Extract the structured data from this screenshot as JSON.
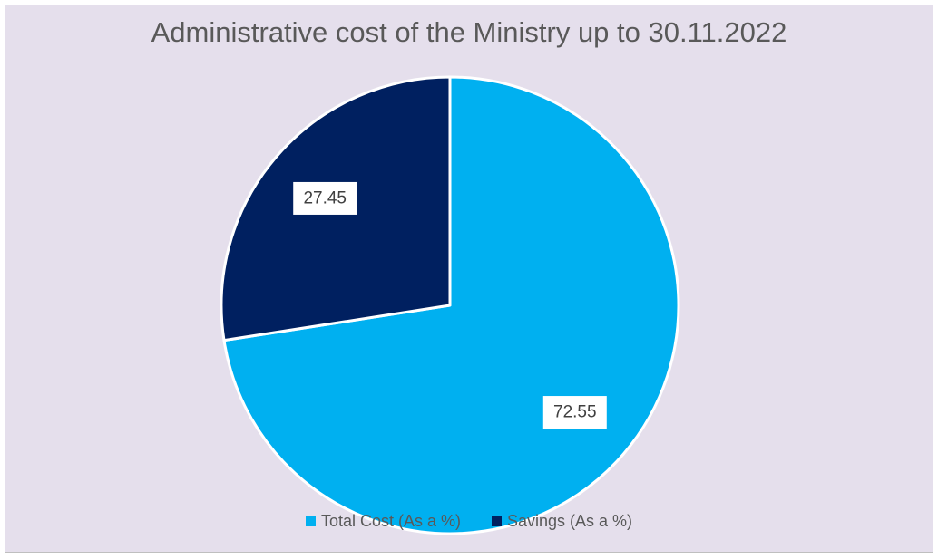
{
  "chart_data": {
    "type": "pie",
    "title": "Administrative cost of the Ministry up to 30.11.2022",
    "categories": [
      "Total Cost (As a %)",
      "Savings (As a %)"
    ],
    "values": [
      72.55,
      27.45
    ],
    "data_labels": [
      "72.55",
      "27.45"
    ],
    "colors": [
      "#00b0f0",
      "#002060"
    ],
    "start_angle_deg": 0,
    "direction": "clockwise",
    "legend": {
      "position": "bottom",
      "entries": [
        "Total Cost (As a %)",
        "Savings (As a %)"
      ]
    }
  },
  "style": {
    "background": "#e5dfec",
    "slice_border": "#ffffff",
    "label_box": "#ffffff"
  }
}
